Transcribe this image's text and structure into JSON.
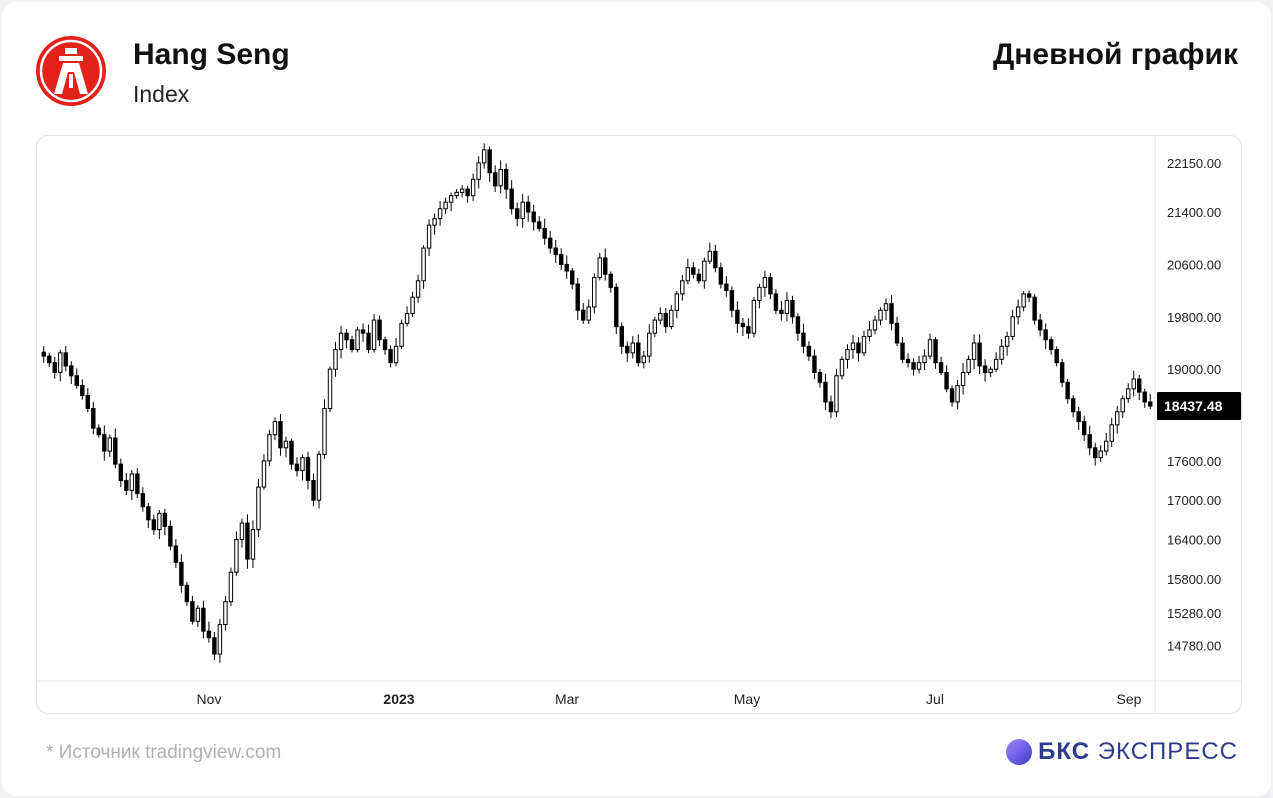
{
  "header": {
    "title": "Hang Seng",
    "subtitle": "Index",
    "chart_kind": "Дневной график"
  },
  "footer": {
    "source": "*  Источник tradingview.com",
    "brand_bold": "БКС",
    "brand_rest": "ЭКСПРЕСС"
  },
  "colors": {
    "logo_red": "#e32219",
    "candle": "#000000",
    "price_tag_bg": "#000000",
    "brand": "#2d3b8c"
  },
  "icons": {
    "logo": "hang-seng-bank-logo",
    "brand_mark": "bks-sphere-icon"
  },
  "chart_data": {
    "type": "candlestick",
    "title": "",
    "xlabel": "",
    "ylabel": "",
    "ylim": [
      14300,
      22500
    ],
    "grid": false,
    "x_ticks": [
      "Nov",
      "2023",
      "Mar",
      "May",
      "Jul",
      "Sep"
    ],
    "y_ticks": [
      22150,
      21400,
      20600,
      19800,
      19000,
      17600,
      17000,
      16400,
      15800,
      15280,
      14780
    ],
    "y_tick_labels": [
      "22150.00",
      "21400.00",
      "20600.00",
      "19800.00",
      "19000.00",
      "17600.00",
      "17000.00",
      "16400.00",
      "15800.00",
      "15280.00",
      "14780.00"
    ],
    "last_price": 18437.48,
    "last_price_label": "18437.48",
    "series": [
      {
        "values": [
          19200,
          19100,
          18950,
          19250,
          19050,
          18900,
          18750,
          18600,
          18400,
          18100,
          18000,
          17750,
          17950,
          17550,
          17300,
          17150,
          17400,
          17100,
          16900,
          16700,
          16550,
          16800,
          16600,
          16300,
          16050,
          15700,
          15450,
          15150,
          15350,
          15000,
          14900,
          14650,
          15100,
          15450,
          15900,
          16400,
          16650,
          16100,
          16550,
          17200,
          17600,
          18000,
          18200,
          17800,
          17900,
          17550,
          17450,
          17650,
          17300,
          17000,
          17700,
          18400,
          19000,
          19300,
          19550,
          19450,
          19300,
          19600,
          19550,
          19300,
          19750,
          19450,
          19300,
          19100,
          19350,
          19700,
          19850,
          20100,
          20350,
          20850,
          21200,
          21300,
          21450,
          21550,
          21650,
          21700,
          21750,
          21650,
          21900,
          22150,
          22350,
          22000,
          21800,
          22050,
          21750,
          21450,
          21300,
          21550,
          21400,
          21250,
          21150,
          21000,
          20850,
          20750,
          20600,
          20500,
          20300,
          19900,
          19750,
          19950,
          20400,
          20700,
          20450,
          20250,
          19650,
          19350,
          19250,
          19400,
          19100,
          19200,
          19550,
          19750,
          19850,
          19650,
          19900,
          20150,
          20350,
          20550,
          20450,
          20350,
          20650,
          20800,
          20550,
          20300,
          20200,
          19900,
          19700,
          19650,
          19550,
          20050,
          20250,
          20400,
          20150,
          19900,
          19850,
          20050,
          19800,
          19550,
          19350,
          19200,
          18950,
          18800,
          18500,
          18350,
          18900,
          19150,
          19300,
          19400,
          19250,
          19500,
          19600,
          19750,
          19900,
          20000,
          19700,
          19400,
          19150,
          19100,
          19000,
          19100,
          19200,
          19450,
          19100,
          18950,
          18700,
          18500,
          18750,
          18950,
          19150,
          19400,
          19050,
          18950,
          19000,
          19150,
          19350,
          19500,
          19800,
          19950,
          20150,
          20100,
          19750,
          19600,
          19450,
          19300,
          19100,
          18800,
          18550,
          18350,
          18200,
          18000,
          17800,
          17650,
          17750,
          17900,
          18150,
          18350,
          18550,
          18700,
          18850,
          18650,
          18500,
          18437.48
        ]
      }
    ]
  }
}
